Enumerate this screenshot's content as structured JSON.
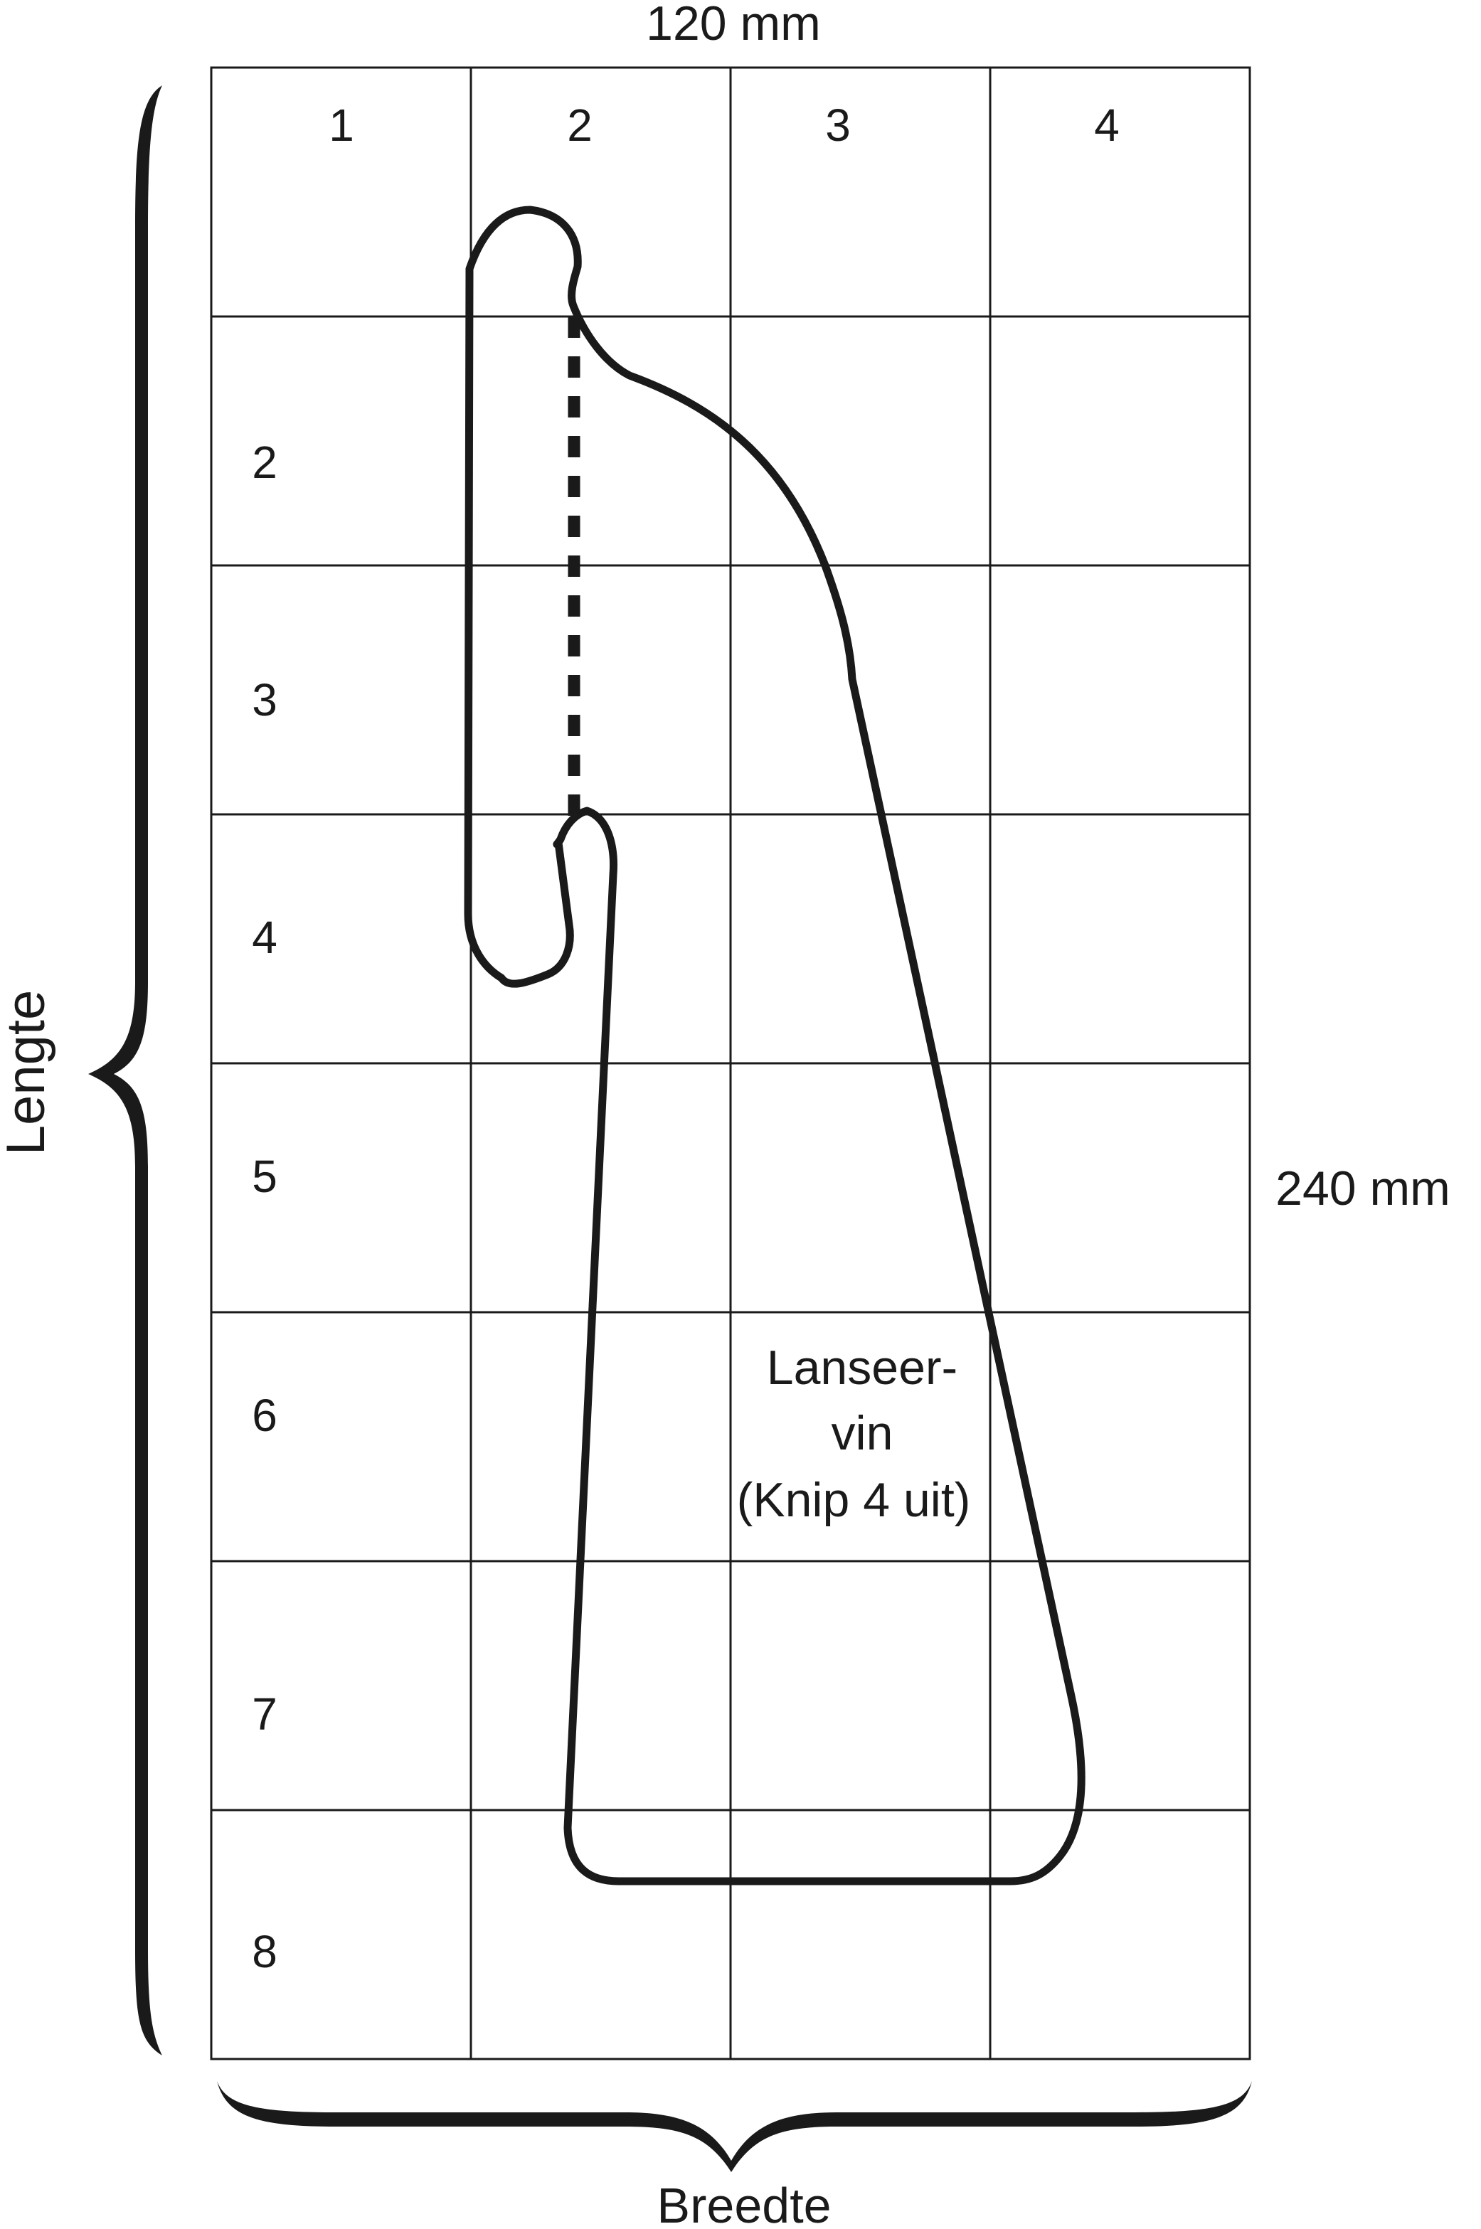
{
  "dimensions": {
    "width_label": "120 mm",
    "length_label": "240 mm"
  },
  "axes": {
    "length_label": "Lengte",
    "width_label": "Breedte"
  },
  "grid": {
    "column_labels": [
      "1",
      "2",
      "3",
      "4"
    ],
    "row_labels": [
      "2",
      "3",
      "4",
      "5",
      "6",
      "7",
      "8"
    ]
  },
  "part": {
    "name_line1": "Lanseer-",
    "name_line2": "vin",
    "instruction": "(Knip 4 uit)"
  },
  "colors": {
    "ink": "#1a1a1a",
    "background": "#ffffff"
  }
}
